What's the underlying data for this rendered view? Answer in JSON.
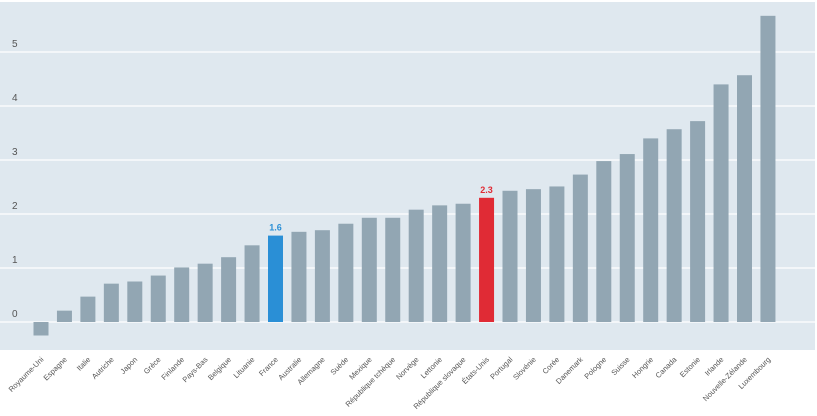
{
  "chart_data": {
    "type": "bar",
    "title": "",
    "xlabel": "",
    "ylabel": "",
    "ylim": [
      -0.55,
      5.75
    ],
    "yticks": [
      0,
      1,
      2,
      3,
      4,
      5
    ],
    "grid": true,
    "categories": [
      "Royaume-Uni",
      "Espagne",
      "Italie",
      "Autriche",
      "Japon",
      "Grèce",
      "Finlande",
      "Pays-Bas",
      "Belgique",
      "Lituanie",
      "France",
      "Australie",
      "Allemagne",
      "Suède",
      "Mexique",
      "République tchèque",
      "Norvège",
      "Lettonie",
      "République slovaque",
      "États-Unis",
      "Portugal",
      "Slovénie",
      "Corée",
      "Danemark",
      "Pologne",
      "Suisse",
      "Hongrie",
      "Canada",
      "Estonie",
      "Irlande",
      "Nouvelle-Zélande",
      "Luxembourg"
    ],
    "values": [
      -0.25,
      0.21,
      0.47,
      0.71,
      0.75,
      0.86,
      1.01,
      1.08,
      1.2,
      1.42,
      1.6,
      1.67,
      1.7,
      1.82,
      1.93,
      1.93,
      2.08,
      2.16,
      2.19,
      2.3,
      2.43,
      2.46,
      2.51,
      2.73,
      2.98,
      3.11,
      3.4,
      3.57,
      3.72,
      4.4,
      4.57,
      5.67
    ],
    "highlights": [
      {
        "category": "France",
        "label": "1.6",
        "color": "#2a8fd6"
      },
      {
        "category": "États-Unis",
        "label": "2.3",
        "color": "#e02b35"
      }
    ],
    "default_bar_color": "#92a6b3",
    "background_color": "#dfe8ef",
    "grid_color": "#ffffff"
  }
}
